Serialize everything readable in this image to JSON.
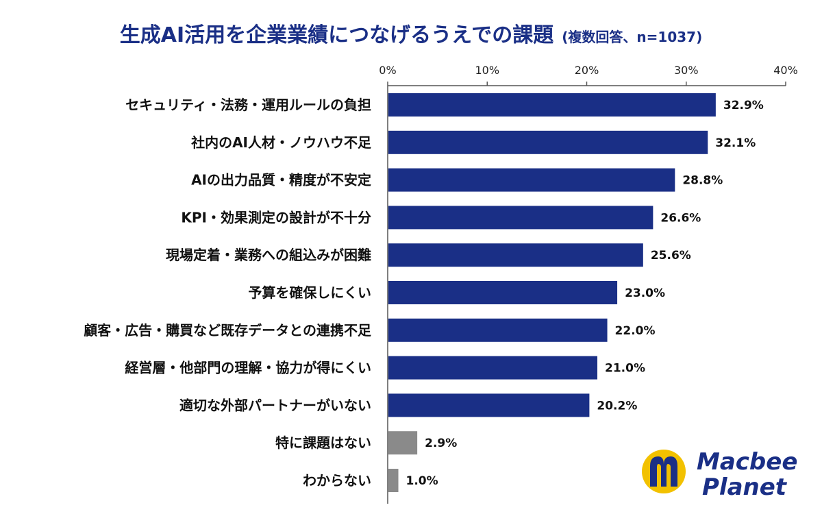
{
  "title": "生成AI活用を企業業績につなげるうえでの課題",
  "subtitle": "(複数回答、n=1037)",
  "logo": {
    "line1": "Macbee",
    "line2": "Planet",
    "icon": "macbee-m-logo-icon"
  },
  "colors": {
    "title": "#1a2f86",
    "bar_primary": "#1a2f86",
    "bar_secondary": "#8a8a8a",
    "logo_blue": "#1a2f86",
    "logo_yellow": "#f2c100"
  },
  "chart_data": {
    "type": "bar",
    "orientation": "horizontal",
    "title": "生成AI活用を企業業績につなげるうえでの課題",
    "xlim": [
      0,
      40
    ],
    "xticks": [
      "0%",
      "10%",
      "20%",
      "30%",
      "40%"
    ],
    "xtick_values": [
      0,
      10,
      20,
      30,
      40
    ],
    "axis_position": "top",
    "grid": false,
    "categories": [
      "セキュリティ・法務・運用ルールの負担",
      "社内のAI人材・ノウハウ不足",
      "AIの出力品質・精度が不安定",
      "KPI・効果測定の設計が不十分",
      "現場定着・業務への組込みが困難",
      "予算を確保しにくい",
      "顧客・広告・購買など既存データとの連携不足",
      "経営層・他部門の理解・協力が得にくい",
      "適切な外部パートナーがいない",
      "特に課題はない",
      "わからない"
    ],
    "values": [
      32.9,
      32.1,
      28.8,
      26.6,
      25.6,
      23.0,
      22.0,
      21.0,
      20.2,
      2.9,
      1.0
    ],
    "value_labels": [
      "32.9%",
      "32.1%",
      "28.8%",
      "26.6%",
      "25.6%",
      "23.0%",
      "22.0%",
      "21.0%",
      "20.2%",
      "2.9%",
      "1.0%"
    ],
    "bar_color_groups": [
      "primary",
      "primary",
      "primary",
      "primary",
      "primary",
      "primary",
      "primary",
      "primary",
      "primary",
      "secondary",
      "secondary"
    ]
  }
}
